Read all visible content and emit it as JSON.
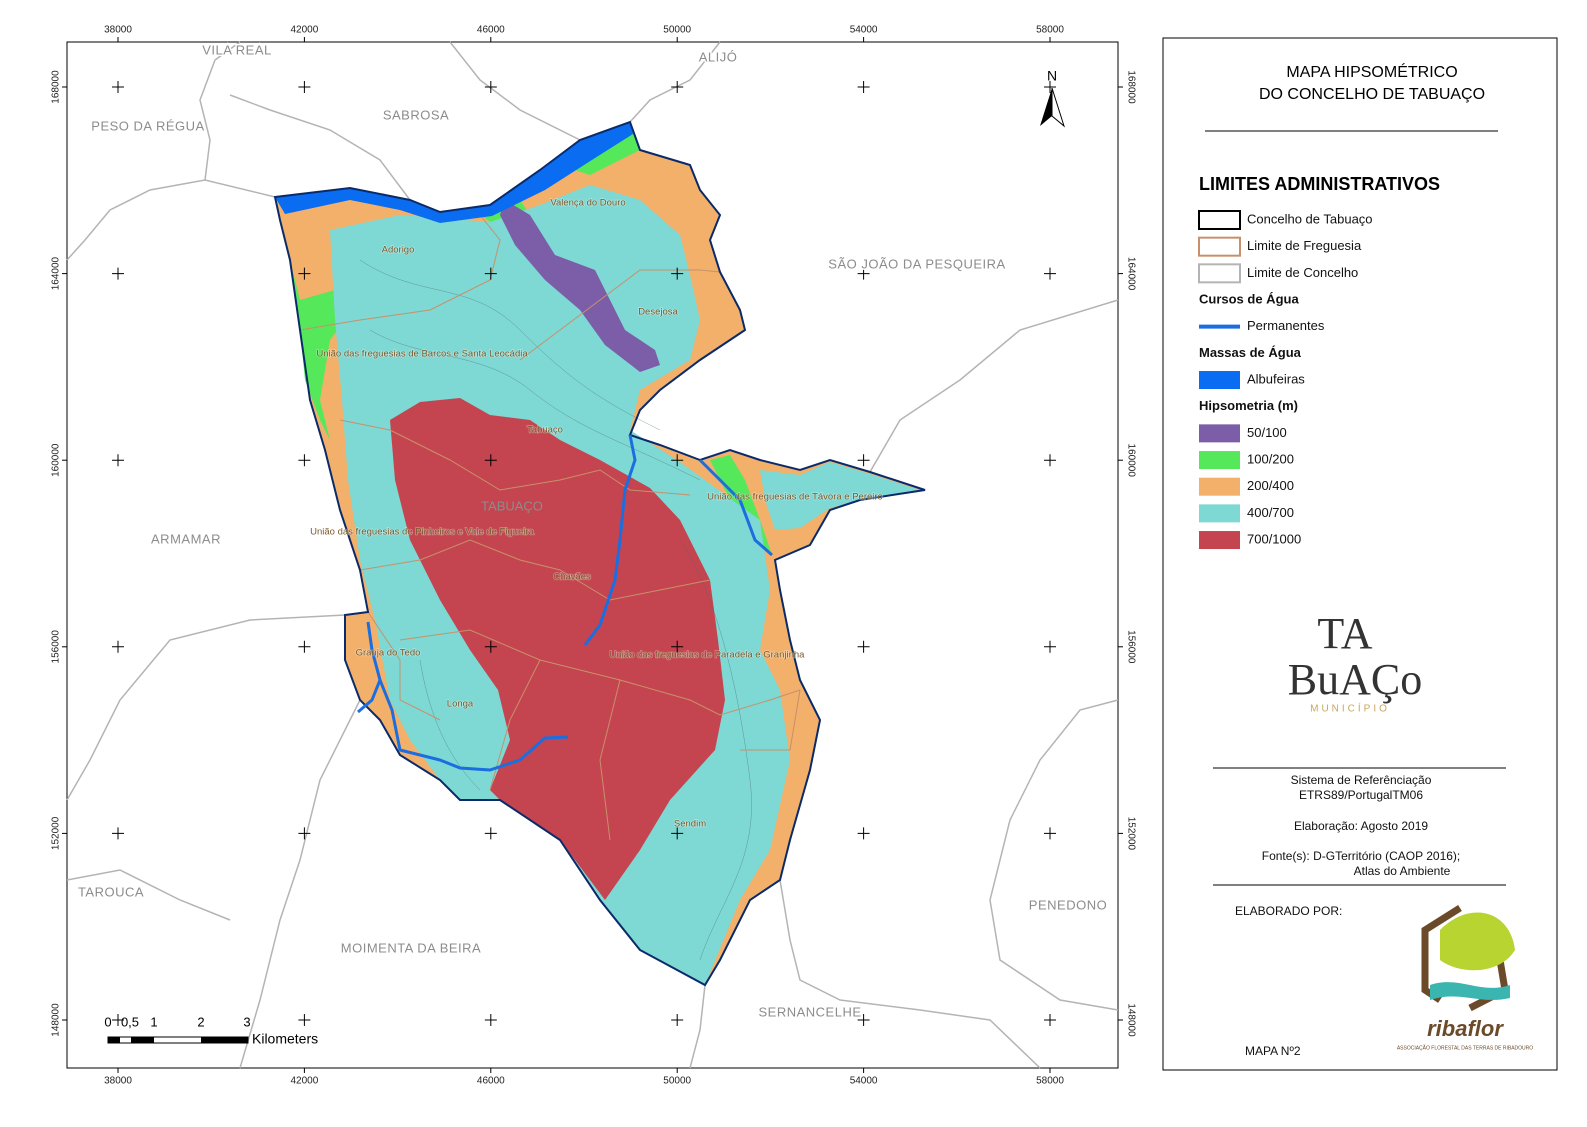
{
  "title": {
    "line1": "MAPA HIPSOMÉTRICO",
    "line2": "DO CONCELHO DE TABUAÇO"
  },
  "map": {
    "x_ticks": [
      38000,
      42000,
      46000,
      50000,
      54000,
      58000
    ],
    "y_ticks": [
      168000,
      164000,
      160000,
      156000,
      152000,
      148000
    ],
    "north": "N",
    "neighbors": [
      "VILA REAL",
      "ALIJÓ",
      "PESO DA RÉGUA",
      "SABROSA",
      "SÃO JOÃO DA PESQUEIRA",
      "ARMAMAR",
      "TAROUCA",
      "MOIMENTA DA BEIRA",
      "SERNANCELHE",
      "PENEDONO"
    ],
    "parishes": [
      "Valença do Douro",
      "Adorigo",
      "Desejosa",
      "União das freguesias de Barcos e Santa Leocádia",
      "Tabuaço",
      "União das freguesias de Távora e Pereiro",
      "União das freguesias de Pinheiros e Vale de Figueira",
      "Chavães",
      "Granja do Tedo",
      "União das freguesias de Paradela e Granjinha",
      "Longa",
      "Sendim"
    ],
    "seat": "TABUAÇO",
    "scale_bar": {
      "labels": [
        "0",
        "0,5",
        "1",
        "2",
        "3"
      ],
      "unit": "Kilometers"
    }
  },
  "legend": {
    "sections": [
      {
        "title": "LIMITES ADMINISTRATIVOS",
        "items": [
          {
            "label": "Concelho de Tabuaço",
            "kind": "outline",
            "color": "#000000"
          },
          {
            "label": "Limite de Freguesia",
            "kind": "outline",
            "color": "#c8906a"
          },
          {
            "label": "Limite de Concelho",
            "kind": "outline",
            "color": "#b4b4b4"
          }
        ]
      },
      {
        "title": "Cursos de Água",
        "items": [
          {
            "label": "Permanentes",
            "kind": "line",
            "color": "#1b6ee0"
          }
        ]
      },
      {
        "title": "Massas de Água",
        "items": [
          {
            "label": "Albufeiras",
            "kind": "fill",
            "color": "#0a6cf0"
          }
        ]
      },
      {
        "title": "Hipsometria (m)",
        "items": [
          {
            "label": "50/100",
            "kind": "fill",
            "color": "#7b5ea7"
          },
          {
            "label": "100/200",
            "kind": "fill",
            "color": "#55e85a"
          },
          {
            "label": "200/400",
            "kind": "fill",
            "color": "#f2b06a"
          },
          {
            "label": "400/700",
            "kind": "fill",
            "color": "#7ed8d4"
          },
          {
            "label": "700/1000",
            "kind": "fill",
            "color": "#c4454f"
          }
        ]
      }
    ]
  },
  "info": {
    "reference_title": "Sistema de Referênciação",
    "reference": "ETRS89/PortugalTM06",
    "date": "Elaboração: Agosto 2019",
    "sources_1": "Fonte(s): D-GTerritório (CAOP 2016);",
    "sources_2": "Atlas do Ambiente",
    "made_by": "ELABORADO POR:",
    "map_number": "MAPA Nº2"
  },
  "logos": {
    "municipality_1": "TA",
    "municipality_2": "BuAÇo",
    "municipality_3": "MUNICÍPIO",
    "association": "ribaflor",
    "association_sub": "ASSOCIAÇÃO FLORESTAL DAS TERRAS DE RIBADOURO"
  }
}
